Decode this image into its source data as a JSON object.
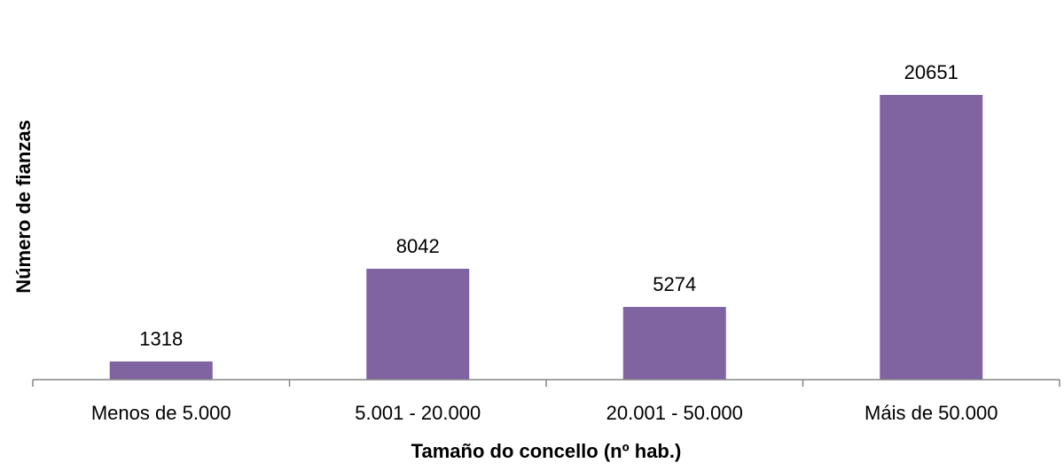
{
  "chart_data": {
    "type": "bar",
    "categories": [
      "Menos de 5.000",
      "5.001 - 20.000",
      "20.001 - 50.000",
      "Máis de 50.000"
    ],
    "values": [
      1318,
      8042,
      5274,
      20651
    ],
    "data_labels": [
      "1318",
      "8042",
      "5274",
      "20651"
    ],
    "title": "",
    "xlabel": "Tamaño do concello (nº hab.)",
    "ylabel": "Número de fianzas",
    "ylim": [
      0,
      20651
    ],
    "grid": false,
    "legend": "none",
    "bar_color": "#8064A2",
    "axis_color": "#868686"
  }
}
